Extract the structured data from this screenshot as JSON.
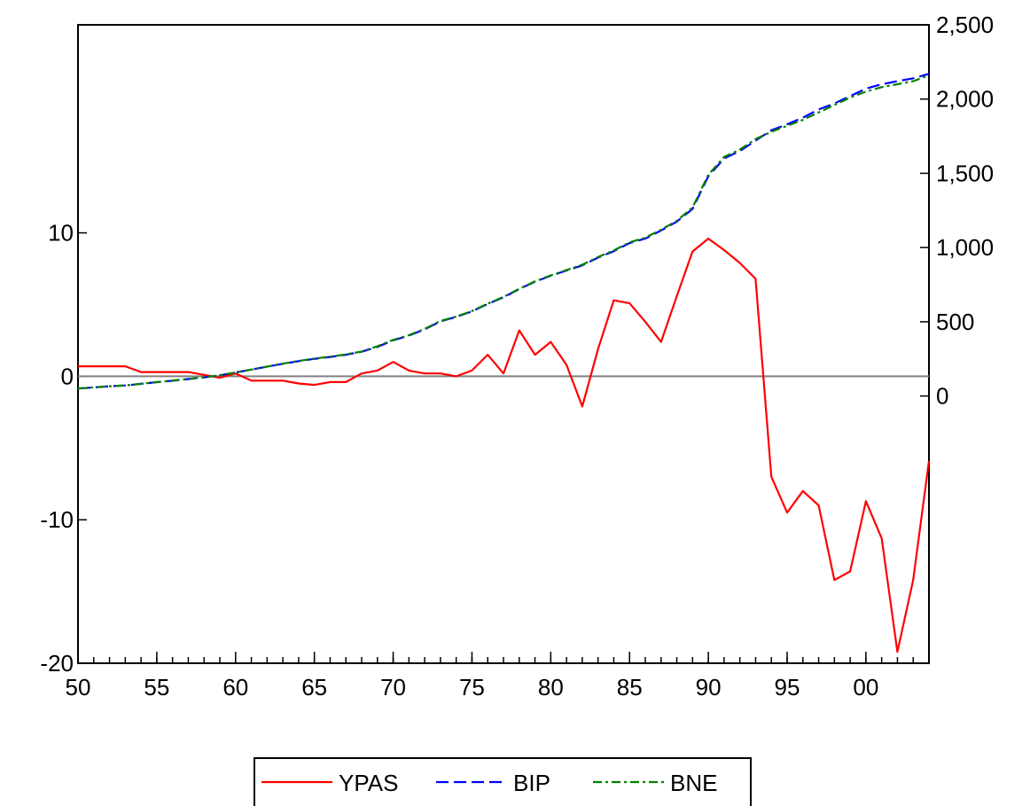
{
  "chart_data": {
    "type": "line",
    "x": [
      1950,
      1951,
      1952,
      1953,
      1954,
      1955,
      1956,
      1957,
      1958,
      1959,
      1960,
      1961,
      1962,
      1963,
      1964,
      1965,
      1966,
      1967,
      1968,
      1969,
      1970,
      1971,
      1972,
      1973,
      1974,
      1975,
      1976,
      1977,
      1978,
      1979,
      1980,
      1981,
      1982,
      1983,
      1984,
      1985,
      1986,
      1987,
      1988,
      1989,
      1990,
      1991,
      1992,
      1993,
      1994,
      1995,
      1996,
      1997,
      1998,
      1999,
      2000,
      2001,
      2002,
      2003,
      2004
    ],
    "xlim": [
      1950,
      2004
    ],
    "x_ticks": [
      {
        "value": 1950,
        "label": "50"
      },
      {
        "value": 1955,
        "label": "55"
      },
      {
        "value": 1960,
        "label": "60"
      },
      {
        "value": 1965,
        "label": "65"
      },
      {
        "value": 1970,
        "label": "70"
      },
      {
        "value": 1975,
        "label": "75"
      },
      {
        "value": 1980,
        "label": "80"
      },
      {
        "value": 1985,
        "label": "85"
      },
      {
        "value": 1990,
        "label": "90"
      },
      {
        "value": 1995,
        "label": "95"
      },
      {
        "value": 2000,
        "label": "00"
      }
    ],
    "left_axis": {
      "ylim": [
        -20,
        24.5
      ],
      "ticks": [
        {
          "value": 10,
          "label": "10"
        },
        {
          "value": 0,
          "label": "0"
        },
        {
          "value": -10,
          "label": "-10"
        },
        {
          "value": -20,
          "label": "-20"
        }
      ]
    },
    "right_axis": {
      "ylim": [
        -1800,
        2500
      ],
      "ticks": [
        {
          "value": 2500,
          "label": "2,500"
        },
        {
          "value": 2000,
          "label": "2,000"
        },
        {
          "value": 1500,
          "label": "1,500"
        },
        {
          "value": 1000,
          "label": "1,000"
        },
        {
          "value": 500,
          "label": "500"
        },
        {
          "value": 0,
          "label": "0"
        }
      ]
    },
    "zero_line": {
      "axis": "left",
      "value": 0,
      "color": "#808080"
    },
    "grid": false,
    "legend_position": "bottom",
    "series": [
      {
        "name": "YPAS",
        "axis": "left",
        "color": "#ff0000",
        "dash": "solid",
        "values": [
          0.7,
          0.7,
          0.7,
          0.7,
          0.3,
          0.3,
          0.3,
          0.3,
          0.1,
          -0.1,
          0.2,
          -0.3,
          -0.3,
          -0.3,
          -0.5,
          -0.6,
          -0.4,
          -0.4,
          0.2,
          0.4,
          1.0,
          0.4,
          0.2,
          0.2,
          0.0,
          0.4,
          1.5,
          0.2,
          3.2,
          1.5,
          2.4,
          0.8,
          -2.1,
          1.9,
          5.3,
          5.1,
          3.8,
          2.4,
          5.6,
          8.7,
          9.6,
          8.8,
          7.9,
          6.8,
          -7.0,
          -9.5,
          -8.0,
          -9.0,
          -14.2,
          -13.6,
          -8.7,
          -11.3,
          -19.2,
          -14.2,
          -5.9
        ]
      },
      {
        "name": "BIP",
        "axis": "right",
        "color": "#0000ff",
        "dash": "long-dash",
        "values": [
          50,
          58,
          66,
          71,
          82,
          93,
          103,
          114,
          125,
          139,
          158,
          178,
          198,
          217,
          235,
          250,
          263,
          278,
          298,
          331,
          375,
          407,
          449,
          502,
          533,
          570,
          620,
          665,
          720,
          770,
          810,
          845,
          880,
          932,
          975,
          1030,
          1060,
          1115,
          1175,
          1260,
          1480,
          1600,
          1650,
          1720,
          1790,
          1830,
          1875,
          1930,
          1970,
          2020,
          2070,
          2100,
          2120,
          2140,
          2170
        ]
      },
      {
        "name": "BNE",
        "axis": "right",
        "color": "#008000",
        "dash": "dash-dot",
        "values": [
          50,
          58,
          66,
          71,
          82,
          94,
          104,
          115,
          126,
          140,
          158,
          178,
          198,
          218,
          236,
          252,
          265,
          280,
          300,
          335,
          378,
          410,
          452,
          505,
          535,
          572,
          622,
          668,
          722,
          772,
          812,
          848,
          884,
          936,
          980,
          1035,
          1066,
          1120,
          1180,
          1270,
          1490,
          1610,
          1660,
          1730,
          1780,
          1820,
          1860,
          1910,
          1960,
          2010,
          2050,
          2080,
          2100,
          2120,
          2160
        ]
      }
    ]
  }
}
